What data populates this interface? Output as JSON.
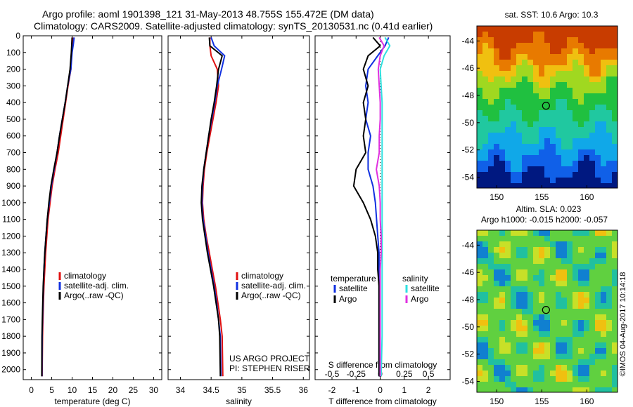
{
  "header": {
    "line1": "Argo profile: aoml 1901398_121 31-May-2013 48.755S 155.472E (DM data)",
    "line2": "Climatology: CARS2009. Satellite-adjusted climatology: synTS_20130531.nc (0.41d earlier)"
  },
  "colors": {
    "climatology": "#e01010",
    "satellite": "#1030e0",
    "argo": "#000000",
    "sal_satellite": "#30e0e0",
    "sal_argo": "#e030e0"
  },
  "credits": {
    "project": "US ARGO PROJECT",
    "pi": "PI: STEPHEN RISER"
  },
  "watermark": "©IMOS 04-Aug-2017 10:14:18",
  "chart_data": [
    {
      "type": "line",
      "xlabel": "temperature (deg C)",
      "ylabel": "",
      "xlim": [
        -2,
        32
      ],
      "ylim": [
        2060,
        0
      ],
      "xticks": [
        0,
        5,
        10,
        15,
        20,
        25,
        30
      ],
      "yticks": [
        0,
        100,
        200,
        300,
        400,
        500,
        600,
        700,
        800,
        900,
        1000,
        1100,
        1200,
        1300,
        1400,
        1500,
        1600,
        1700,
        1800,
        1900,
        2000
      ],
      "legend": [
        "climatology",
        "satellite-adj. clim.",
        "Argo(..raw -QC)"
      ],
      "series": [
        {
          "name": "climatology",
          "color": "#e01010",
          "x": [
            10.2,
            10.1,
            9.9,
            9.7,
            9.0,
            8.4,
            7.8,
            7.2,
            6.6,
            5.8,
            5.1,
            4.6,
            4.1,
            3.8,
            3.5,
            3.3,
            3.1,
            2.95,
            2.85,
            2.75,
            2.65
          ],
          "y": [
            10,
            50,
            100,
            200,
            300,
            400,
            500,
            600,
            700,
            800,
            900,
            1000,
            1100,
            1200,
            1300,
            1400,
            1500,
            1600,
            1700,
            1800,
            2040
          ]
        },
        {
          "name": "satellite-adj. clim.",
          "color": "#1030e0",
          "x": [
            10.5,
            10.3,
            10.0,
            9.7,
            8.9,
            8.3,
            7.6,
            6.9,
            6.3,
            5.6,
            4.9,
            4.4,
            3.9,
            3.6,
            3.3,
            3.1,
            2.95,
            2.85,
            2.75,
            2.65,
            2.6
          ],
          "y": [
            10,
            50,
            100,
            200,
            300,
            400,
            500,
            600,
            700,
            800,
            900,
            1000,
            1100,
            1200,
            1300,
            1400,
            1500,
            1600,
            1700,
            1800,
            2040
          ]
        },
        {
          "name": "Argo(..raw -QC)",
          "color": "#000000",
          "x": [
            10.0,
            9.9,
            9.8,
            9.5,
            8.9,
            8.3,
            7.6,
            6.9,
            6.3,
            5.5,
            4.8,
            4.3,
            3.9,
            3.6,
            3.3,
            3.1,
            2.9,
            2.8,
            2.7,
            2.6,
            2.55
          ],
          "y": [
            10,
            50,
            100,
            200,
            300,
            400,
            500,
            600,
            700,
            800,
            900,
            1000,
            1100,
            1200,
            1300,
            1400,
            1500,
            1600,
            1700,
            1800,
            2040
          ]
        }
      ]
    },
    {
      "type": "line",
      "xlabel": "salinity",
      "xlim": [
        33.8,
        36.1
      ],
      "ylim": [
        2060,
        0
      ],
      "xticks": [
        34,
        34.5,
        35,
        35.5,
        36
      ],
      "legend": [
        "climatology",
        "satellite-adj. clim.",
        "Argo(..raw -QC)"
      ],
      "series": [
        {
          "name": "climatology",
          "color": "#e01010",
          "x": [
            34.48,
            34.48,
            34.5,
            34.6,
            34.62,
            34.58,
            34.53,
            34.48,
            34.43,
            34.39,
            34.37,
            34.36,
            34.38,
            34.42,
            34.47,
            34.52,
            34.57,
            34.61,
            34.65,
            34.68,
            34.69
          ],
          "y": [
            10,
            60,
            120,
            200,
            300,
            400,
            500,
            600,
            700,
            800,
            900,
            1000,
            1100,
            1200,
            1300,
            1400,
            1500,
            1600,
            1700,
            1800,
            2040
          ]
        },
        {
          "name": "satellite-adj. clim.",
          "color": "#1030e0",
          "x": [
            34.5,
            34.55,
            34.72,
            34.67,
            34.6,
            34.56,
            34.51,
            34.46,
            34.42,
            34.38,
            34.36,
            34.35,
            34.37,
            34.41,
            34.45,
            34.5,
            34.55,
            34.59,
            34.62,
            34.65,
            34.66
          ],
          "y": [
            10,
            60,
            120,
            200,
            300,
            400,
            500,
            600,
            700,
            800,
            900,
            1000,
            1100,
            1200,
            1300,
            1400,
            1500,
            1600,
            1700,
            1800,
            2040
          ]
        },
        {
          "name": "Argo(..raw -QC)",
          "color": "#000000",
          "x": [
            34.47,
            34.48,
            34.68,
            34.62,
            34.59,
            34.55,
            34.5,
            34.46,
            34.42,
            34.38,
            34.35,
            34.34,
            34.36,
            34.4,
            34.44,
            34.49,
            34.54,
            34.58,
            34.62,
            34.64,
            34.65
          ],
          "y": [
            10,
            60,
            120,
            200,
            300,
            400,
            500,
            600,
            700,
            800,
            900,
            1000,
            1100,
            1200,
            1300,
            1400,
            1500,
            1600,
            1700,
            1800,
            2040
          ]
        }
      ]
    },
    {
      "type": "line",
      "xlabel": "T difference from climatology",
      "xlabel2": "S difference from climatology",
      "xlim": [
        -2.7,
        2.9
      ],
      "ylim": [
        2060,
        0
      ],
      "xticks": [
        -2,
        -1,
        0,
        1,
        2
      ],
      "xticks_s": [
        -0.5,
        -0.25,
        0,
        0.25,
        0.5
      ],
      "xlim_s": [
        -0.675,
        0.725
      ],
      "legend_groups": [
        {
          "title": "temperature",
          "items": [
            "satellite",
            "Argo"
          ]
        },
        {
          "title": "salinity",
          "items": [
            "satellite",
            "Argo"
          ]
        }
      ],
      "series": [
        {
          "name": "T satellite",
          "color": "#1030e0",
          "x": [
            0.35,
            0.2,
            -0.1,
            -0.5,
            -0.6,
            -0.5,
            -0.6,
            -0.4,
            -0.5,
            -0.5,
            -0.3,
            -0.2,
            -0.15,
            -0.1,
            -0.05,
            -0.05,
            -0.05,
            -0.05,
            -0.05,
            -0.05,
            -0.05
          ],
          "y": [
            10,
            60,
            120,
            200,
            300,
            400,
            500,
            600,
            700,
            800,
            900,
            1000,
            1100,
            1200,
            1300,
            1400,
            1500,
            1600,
            1700,
            1800,
            2040
          ]
        },
        {
          "name": "T Argo",
          "color": "#000000",
          "x": [
            -0.3,
            0.0,
            -0.5,
            -0.7,
            -0.5,
            -0.7,
            -0.6,
            -0.7,
            -0.6,
            -1.0,
            -1.1,
            -0.7,
            -0.4,
            -0.2,
            -0.1,
            -0.1,
            -0.05,
            -0.05,
            -0.05,
            -0.05,
            -0.05
          ],
          "y": [
            10,
            60,
            120,
            200,
            300,
            400,
            500,
            600,
            700,
            800,
            900,
            1000,
            1100,
            1200,
            1300,
            1400,
            1500,
            1600,
            1700,
            1800,
            2040
          ]
        },
        {
          "name": "S satellite",
          "color": "#30e0e0",
          "x": [
            0.05,
            0.1,
            0.04,
            0.0,
            0.01,
            0.02,
            0.02,
            0.02,
            0.02,
            0.02,
            0.02,
            0.02,
            0.02,
            0.02,
            0.02,
            0.02,
            0.02,
            0.02,
            0.02,
            0.02,
            0.01
          ],
          "y": [
            10,
            60,
            120,
            200,
            300,
            400,
            500,
            600,
            700,
            800,
            900,
            1000,
            1100,
            1200,
            1300,
            1400,
            1500,
            1600,
            1700,
            1800,
            2040
          ]
        },
        {
          "name": "S Argo",
          "color": "#e030e0",
          "x": [
            -0.01,
            0.04,
            0.0,
            -0.02,
            -0.01,
            0.0,
            0.0,
            -0.01,
            -0.01,
            -0.04,
            -0.01,
            0.0,
            0.0,
            0.01,
            0.01,
            0.0,
            0.0,
            0.0,
            0.0,
            0.0,
            0.0
          ],
          "y": [
            10,
            60,
            120,
            200,
            300,
            400,
            500,
            600,
            700,
            800,
            900,
            1000,
            1100,
            1200,
            1300,
            1400,
            1500,
            1600,
            1700,
            1800,
            2040
          ]
        }
      ]
    },
    {
      "type": "heatmap",
      "title": "sat. SST: 10.6  Argo: 10.3",
      "xlim": [
        147.8,
        163.4
      ],
      "ylim": [
        -54.8,
        -42.9
      ],
      "xticks": [
        150,
        155,
        160
      ],
      "yticks": [
        -44,
        -46,
        -48,
        -50,
        -52,
        -54
      ],
      "marker": {
        "lon": 155.47,
        "lat": -48.755
      }
    },
    {
      "type": "heatmap",
      "title": "Altim. SLA: 0.023",
      "subtitle": "Argo h1000: -0.015 h2000: -0.057",
      "xlim": [
        147.8,
        163.4
      ],
      "ylim": [
        -54.8,
        -42.9
      ],
      "xticks": [
        150,
        155,
        160
      ],
      "yticks": [
        -44,
        -46,
        -48,
        -50,
        -52,
        -54
      ],
      "marker": {
        "lon": 155.47,
        "lat": -48.755
      }
    }
  ]
}
